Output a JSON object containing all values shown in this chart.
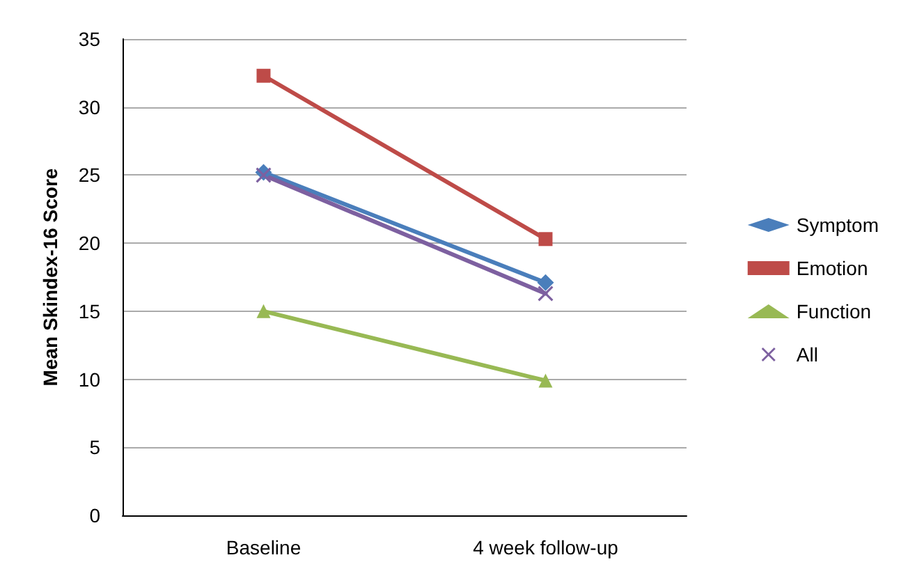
{
  "chart_data": {
    "type": "line",
    "ylabel": "Mean Skindex-16 Score",
    "categories": [
      "Baseline",
      "4 week follow-up"
    ],
    "series": [
      {
        "name": "Symptom",
        "color": "#4a7ebb",
        "marker": "diamond",
        "values": [
          25.2,
          17.1
        ]
      },
      {
        "name": "Emotion",
        "color": "#be4b48",
        "marker": "square",
        "values": [
          32.3,
          20.3
        ]
      },
      {
        "name": "Function",
        "color": "#98b954",
        "marker": "triangle",
        "values": [
          15,
          9.9
        ]
      },
      {
        "name": "All",
        "color": "#7d60a0",
        "marker": "cross",
        "values": [
          25,
          16.3
        ]
      }
    ],
    "ylim": [
      0,
      35
    ],
    "yticks": [
      0,
      5,
      10,
      15,
      20,
      25,
      30,
      35
    ],
    "grid": "y",
    "legend": "right"
  }
}
